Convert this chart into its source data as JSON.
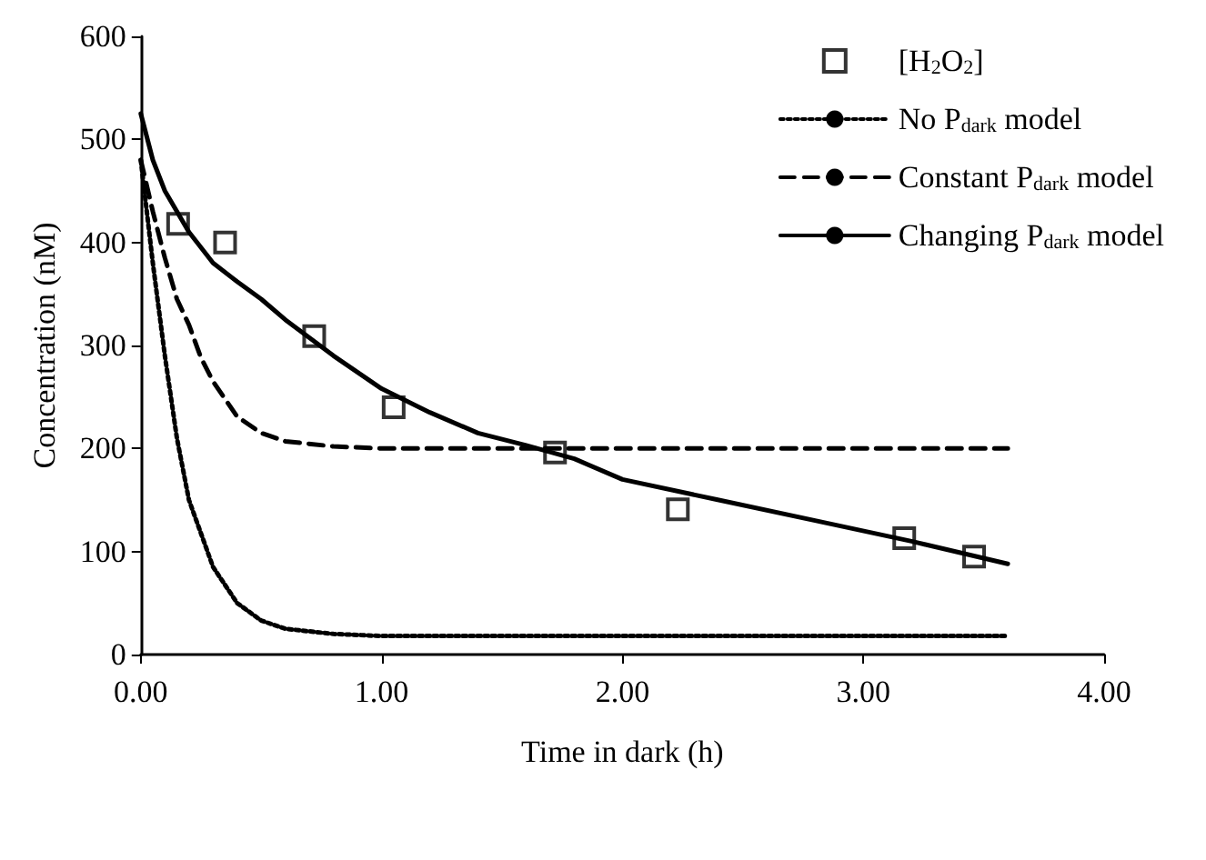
{
  "chart_data": {
    "type": "line",
    "xlabel": "Time in dark (h)",
    "ylabel": "Concentration (nM)",
    "xlim": [
      0,
      4
    ],
    "xticks": [
      {
        "value": 0,
        "label": "0.00"
      },
      {
        "value": 1,
        "label": "1.00"
      },
      {
        "value": 2,
        "label": "2.00"
      },
      {
        "value": 3,
        "label": "3.00"
      },
      {
        "value": 4,
        "label": "4.00"
      }
    ],
    "ylim": [
      0,
      600
    ],
    "yticks": [
      0,
      100,
      200,
      300,
      400,
      500,
      600
    ],
    "grid": false,
    "legend": "top right",
    "series": [
      {
        "name": "[H$_{2}$O$_{2}$]",
        "type": "scatter",
        "marker": "square",
        "color": "#000000",
        "x": [
          0.155,
          0.35,
          0.72,
          1.05,
          1.72,
          2.23,
          3.17,
          3.46
        ],
        "values": [
          418,
          400,
          309,
          240,
          196,
          141,
          113,
          95
        ]
      },
      {
        "name": "No P$_{dark}$ model",
        "type": "line",
        "line_style": "dotted",
        "color": "#000000",
        "x": [
          0,
          0.05,
          0.1,
          0.15,
          0.2,
          0.3,
          0.4,
          0.5,
          0.6,
          0.8,
          1.0,
          3.6
        ],
        "values": [
          480,
          380,
          290,
          210,
          150,
          85,
          50,
          33,
          25,
          20,
          18,
          18
        ]
      },
      {
        "name": "Constant P$_{dark}$ model",
        "type": "line",
        "line_style": "dashed",
        "color": "#000000",
        "x": [
          0,
          0.05,
          0.1,
          0.15,
          0.2,
          0.25,
          0.3,
          0.4,
          0.5,
          0.6,
          0.8,
          1.0,
          3.6
        ],
        "values": [
          480,
          430,
          385,
          345,
          320,
          288,
          265,
          231,
          215,
          207,
          202,
          200,
          200
        ]
      },
      {
        "name": "Changing P$_{dark}$ model",
        "type": "line",
        "line_style": "solid",
        "color": "#000000",
        "x": [
          0,
          0.05,
          0.1,
          0.2,
          0.3,
          0.4,
          0.5,
          0.6,
          0.8,
          1.0,
          1.2,
          1.4,
          1.6,
          1.8,
          2.0,
          2.4,
          2.8,
          3.2,
          3.6
        ],
        "values": [
          525,
          480,
          450,
          410,
          380,
          362,
          345,
          325,
          290,
          258,
          235,
          215,
          203,
          190,
          170,
          150,
          130,
          110,
          88
        ]
      }
    ]
  }
}
